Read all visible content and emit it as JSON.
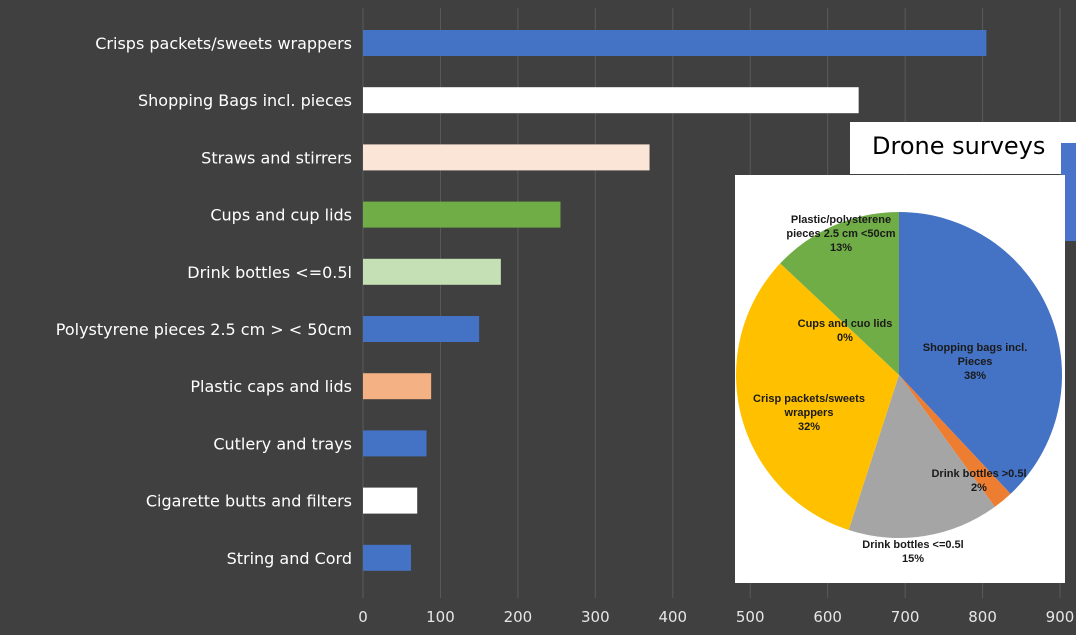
{
  "chart_data": [
    {
      "type": "bar",
      "orientation": "horizontal",
      "categories": [
        "Crisps packets/sweets wrappers",
        "Shopping Bags incl. pieces",
        "Straws and stirrers",
        "Cups and cup lids",
        "Drink bottles <=0.5l",
        "Polystyrene pieces 2.5 cm > < 50cm",
        "Plastic caps and lids",
        "Cutlery and trays",
        "Cigarette butts and filters",
        "String and Cord"
      ],
      "values": [
        805,
        640,
        370,
        255,
        178,
        150,
        88,
        82,
        70,
        62
      ],
      "colors": [
        "#4472c4",
        "#ffffff",
        "#fbe5d6",
        "#70ad47",
        "#c5e0b4",
        "#4472c4",
        "#f4b183",
        "#4472c4",
        "#ffffff",
        "#4472c4"
      ],
      "xlim": [
        0,
        900
      ],
      "xticks": [
        0,
        100,
        200,
        300,
        400,
        500,
        600,
        700,
        800,
        900
      ],
      "background": "#404040",
      "grid": true
    },
    {
      "type": "pie",
      "title": "Drone surveys",
      "slices": [
        {
          "label_lines": [
            "Shopping bags incl.",
            "Pieces",
            "38%"
          ],
          "value": 38,
          "color": "#4472c4"
        },
        {
          "label_lines": [
            "Drink bottles >0.5l",
            "2%"
          ],
          "value": 2,
          "color": "#ed7d31"
        },
        {
          "label_lines": [
            "Drink bottles <=0.5l",
            "15%"
          ],
          "value": 15,
          "color": "#a5a5a5"
        },
        {
          "label_lines": [
            "Crisp packets/sweets",
            "wrappers",
            "32%"
          ],
          "value": 32,
          "color": "#ffc000"
        },
        {
          "label_lines": [
            "Cups and cuo lids",
            "0%"
          ],
          "value": 0,
          "color": "#5b9bd5"
        },
        {
          "label_lines": [
            "Plastic/polysterene",
            "pieces 2.5 cm <50cm",
            "13%"
          ],
          "value": 13,
          "color": "#70ad47"
        }
      ]
    }
  ]
}
